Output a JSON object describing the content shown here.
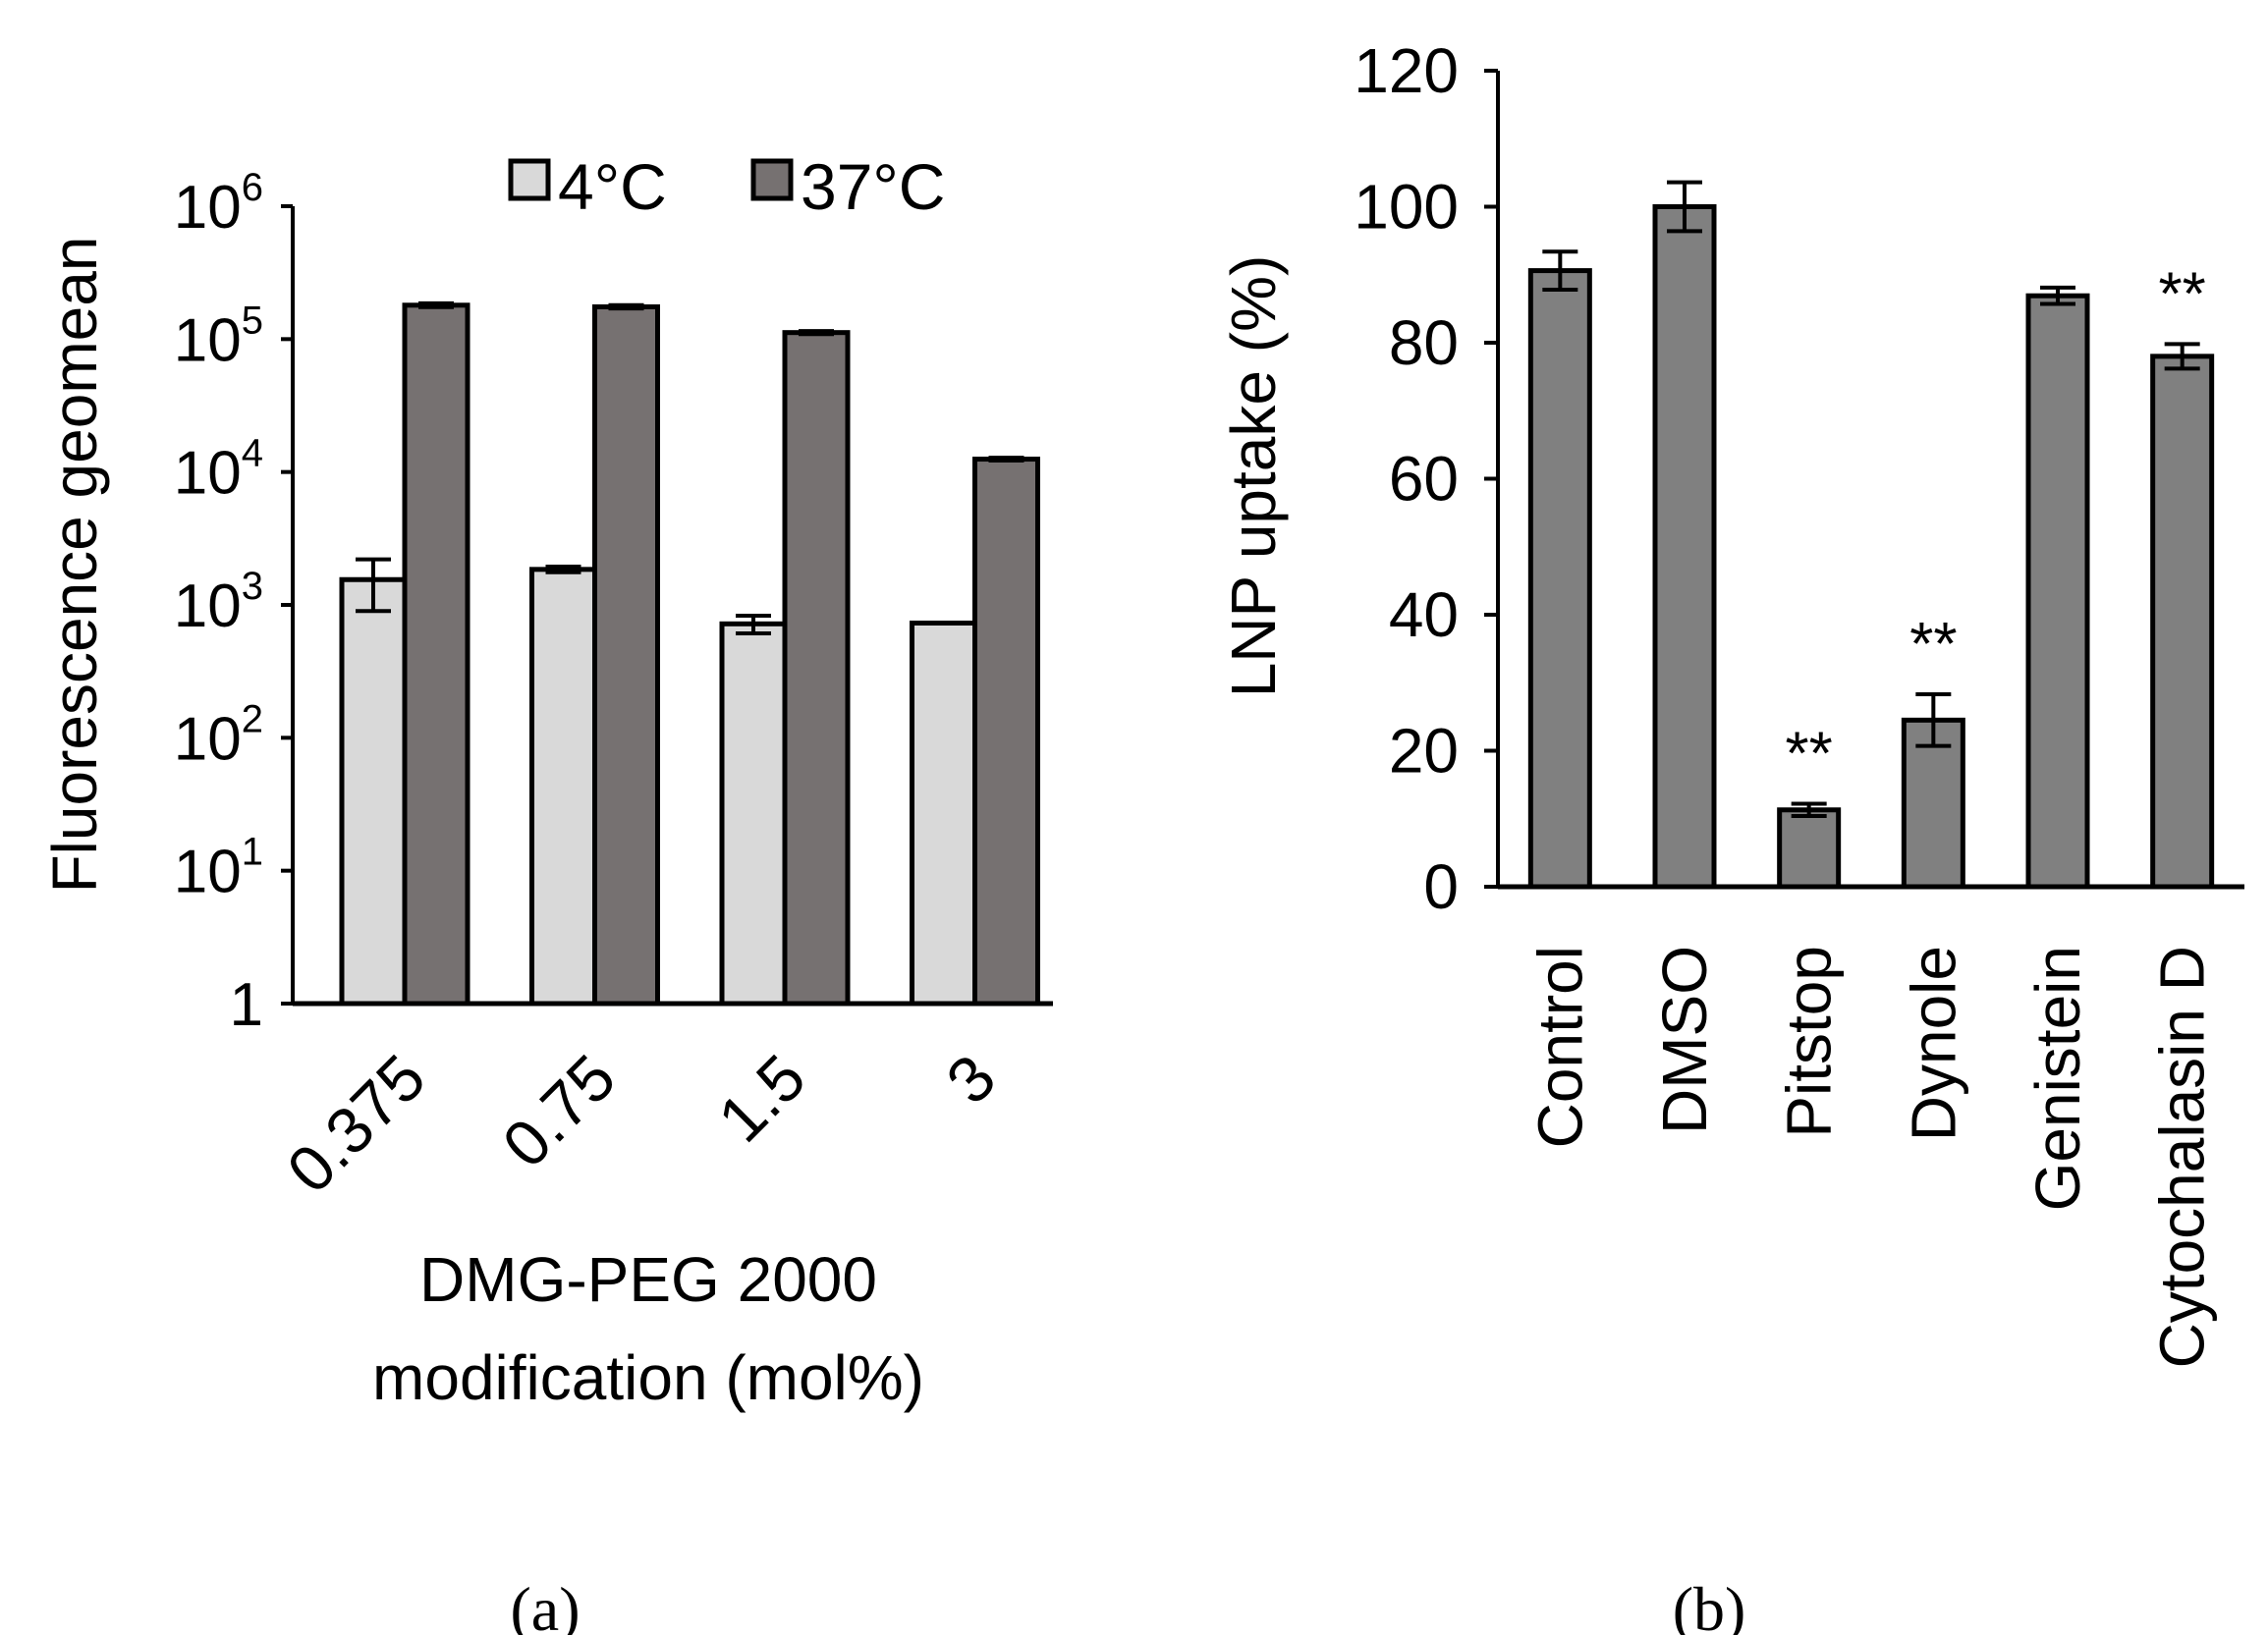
{
  "colors": {
    "bar_light": "#d9d9d9",
    "bar_dark": "#767171",
    "bar_gray": "#808080",
    "stroke": "#000000"
  },
  "chart_data": [
    {
      "panel": "(a)",
      "type": "bar",
      "scale": "log",
      "ylabel": "Fluorescence geomean",
      "xlabel": "DMG-PEG 2000 modification (mol%)",
      "xlabel_lines": [
        "DMG-PEG 2000",
        "modification (mol%)"
      ],
      "categories": [
        "0.375",
        "0.75",
        "1.5",
        "3"
      ],
      "y_ticks": [
        {
          "value": 1,
          "base": "1",
          "exp": ""
        },
        {
          "value": 10,
          "base": "10",
          "exp": "1"
        },
        {
          "value": 100,
          "base": "10",
          "exp": "2"
        },
        {
          "value": 1000,
          "base": "10",
          "exp": "3"
        },
        {
          "value": 10000,
          "base": "10",
          "exp": "4"
        },
        {
          "value": 100000,
          "base": "10",
          "exp": "5"
        },
        {
          "value": 1000000,
          "base": "10",
          "exp": "6"
        }
      ],
      "ylim": [
        1,
        1000000
      ],
      "legend_position": "top-right",
      "series": [
        {
          "name": "4°C",
          "color": "#d9d9d9",
          "values": [
            1550,
            1850,
            720,
            730
          ],
          "errors": [
            650,
            90,
            110,
            0
          ]
        },
        {
          "name": "37°C",
          "color": "#767171",
          "values": [
            180000,
            175000,
            112000,
            12500
          ],
          "errors": [
            6000,
            5000,
            3000,
            300
          ]
        }
      ]
    },
    {
      "panel": "(b)",
      "type": "bar",
      "ylabel": "LNP uptake (%)",
      "categories": [
        "Control",
        "DMSO",
        "Pitstop",
        "Dynole",
        "Genistein",
        "Cytochalasin D"
      ],
      "values": [
        90.6,
        100,
        11.3,
        24.5,
        86.9,
        78
      ],
      "errors": [
        2.8,
        3.6,
        0.9,
        3.8,
        1.2,
        1.8
      ],
      "annotations": [
        "",
        "",
        "**",
        "**",
        "",
        "**"
      ],
      "y_ticks": [
        "0",
        "20",
        "40",
        "60",
        "80",
        "100",
        "120"
      ],
      "ylim": [
        0,
        120
      ],
      "color": "#808080"
    }
  ]
}
